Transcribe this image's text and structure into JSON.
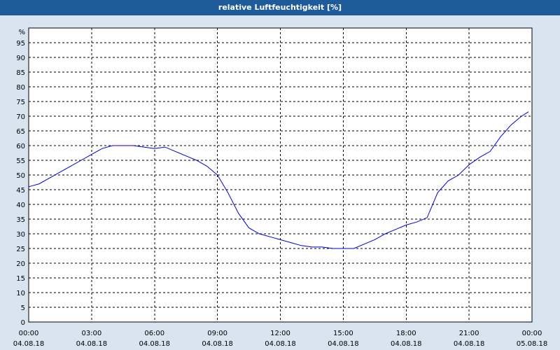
{
  "window": {
    "title": "relative Luftfeuchtigkeit [%]"
  },
  "chart_data": {
    "type": "line",
    "title": "relative Luftfeuchtigkeit [%]",
    "ylabel": "%",
    "xlabel": "",
    "ylim": [
      0,
      100
    ],
    "yticks": [
      0,
      5,
      10,
      15,
      20,
      25,
      30,
      35,
      40,
      45,
      50,
      55,
      60,
      65,
      70,
      75,
      80,
      85,
      90,
      95
    ],
    "xlim": [
      "04.08.18 00:00",
      "05.08.18 00:00"
    ],
    "xticks": [
      {
        "time": "00:00",
        "date": "04.08.18"
      },
      {
        "time": "03:00",
        "date": "04.08.18"
      },
      {
        "time": "06:00",
        "date": "04.08.18"
      },
      {
        "time": "09:00",
        "date": "04.08.18"
      },
      {
        "time": "12:00",
        "date": "04.08.18"
      },
      {
        "time": "15:00",
        "date": "04.08.18"
      },
      {
        "time": "18:00",
        "date": "04.08.18"
      },
      {
        "time": "21:00",
        "date": "04.08.18"
      },
      {
        "time": "00:00",
        "date": "05.08.18"
      }
    ],
    "grid": true,
    "series_color": "#0000cc",
    "x": [
      "00:00",
      "00:30",
      "01:00",
      "01:30",
      "02:00",
      "02:30",
      "03:00",
      "03:30",
      "04:00",
      "04:30",
      "05:00",
      "05:30",
      "06:00",
      "06:30",
      "07:00",
      "07:30",
      "08:00",
      "08:30",
      "09:00",
      "09:30",
      "10:00",
      "10:30",
      "11:00",
      "11:30",
      "12:00",
      "12:30",
      "13:00",
      "13:30",
      "14:00",
      "14:30",
      "15:00",
      "15:30",
      "16:00",
      "16:30",
      "17:00",
      "17:30",
      "18:00",
      "18:30",
      "19:00",
      "19:30",
      "20:00",
      "20:30",
      "21:00",
      "21:30",
      "22:00",
      "22:30",
      "23:00",
      "23:30",
      "23:50"
    ],
    "series": [
      {
        "values": [
          46,
          47,
          49,
          51,
          53,
          55,
          57,
          59,
          60,
          60,
          60,
          59.5,
          59,
          59.5,
          58,
          56.5,
          55,
          53,
          50,
          44,
          37,
          32,
          30,
          29,
          28,
          27,
          26,
          25.5,
          25.5,
          25,
          25,
          25,
          26.5,
          28,
          30,
          31.5,
          33,
          34,
          35.5,
          44,
          48,
          50,
          53.5,
          56,
          58,
          63,
          67,
          70,
          71.5
        ]
      }
    ]
  }
}
